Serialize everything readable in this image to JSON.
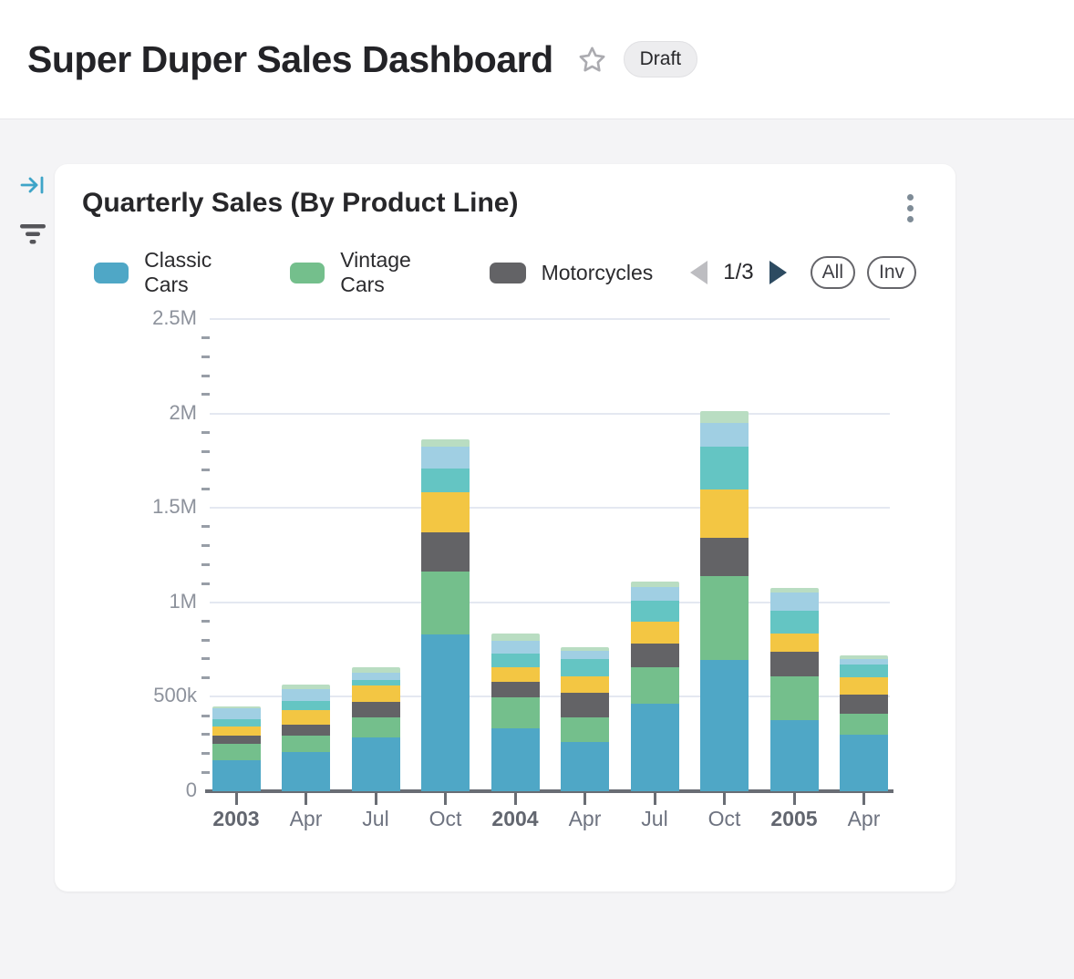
{
  "header": {
    "title": "Super Duper Sales Dashboard",
    "status_badge": "Draft"
  },
  "side_rail": {
    "collapse_icon": "arrow-to-bar",
    "filter_icon": "filter-lines"
  },
  "card": {
    "title": "Quarterly Sales (By Product Line)",
    "menu_icon": "kebab-menu",
    "legend": {
      "visible_items": [
        {
          "label": "Classic Cars",
          "color": "#4fa7c6"
        },
        {
          "label": "Vintage Cars",
          "color": "#74bf8c"
        },
        {
          "label": "Motorcycles",
          "color": "#636366"
        }
      ],
      "pagination": {
        "page_indicator": "1/3",
        "prev_enabled": false,
        "next_enabled": true
      },
      "select_all_label": "All",
      "invert_selection_label": "Inv"
    }
  },
  "chart_data": {
    "type": "bar",
    "stacked": true,
    "title": "Quarterly Sales (By Product Line)",
    "categories": [
      "2003",
      "Apr",
      "Jul",
      "Oct",
      "2004",
      "Apr",
      "Jul",
      "Oct",
      "2005",
      "Apr"
    ],
    "ylim": [
      0,
      2500000
    ],
    "y_ticks": [
      {
        "label": "0",
        "value": 0
      },
      {
        "label": "500k",
        "value": 500000
      },
      {
        "label": "1M",
        "value": 1000000
      },
      {
        "label": "1.5M",
        "value": 1500000
      },
      {
        "label": "2M",
        "value": 2000000
      },
      {
        "label": "2.5M",
        "value": 2500000
      }
    ],
    "minor_tick_step": 100000,
    "grid": true,
    "legend_position": "top",
    "legend_note": "legend paginated 1/3; only first three series names visible in screenshot",
    "series": [
      {
        "name": "Classic Cars",
        "color": "#4fa7c6",
        "values": [
          163000,
          208000,
          285000,
          830000,
          331000,
          261000,
          462000,
          695000,
          375000,
          298000
        ]
      },
      {
        "name": "Vintage Cars",
        "color": "#74bf8c",
        "values": [
          88000,
          88000,
          106000,
          335000,
          166000,
          132000,
          193000,
          442000,
          232000,
          113000
        ]
      },
      {
        "name": "Motorcycles",
        "color": "#636366",
        "values": [
          45000,
          56000,
          84000,
          206000,
          80000,
          129000,
          129000,
          204000,
          133000,
          100000
        ]
      },
      {
        "name": "",
        "color": "#f3c643",
        "values": [
          45000,
          76000,
          84000,
          212000,
          77000,
          85000,
          113000,
          257000,
          95000,
          90000
        ]
      },
      {
        "name": "",
        "color": "#64c5c3",
        "values": [
          40000,
          48000,
          29000,
          125000,
          76000,
          92000,
          113000,
          225000,
          122000,
          71000
        ]
      },
      {
        "name": "",
        "color": "#a0cfe3",
        "values": [
          56000,
          64000,
          40000,
          116000,
          64000,
          45000,
          72000,
          125000,
          93000,
          29000
        ]
      },
      {
        "name": "",
        "color": "#b9ddc2",
        "values": [
          11000,
          24000,
          27000,
          37000,
          40000,
          19000,
          29000,
          64000,
          27000,
          19000
        ]
      }
    ]
  }
}
